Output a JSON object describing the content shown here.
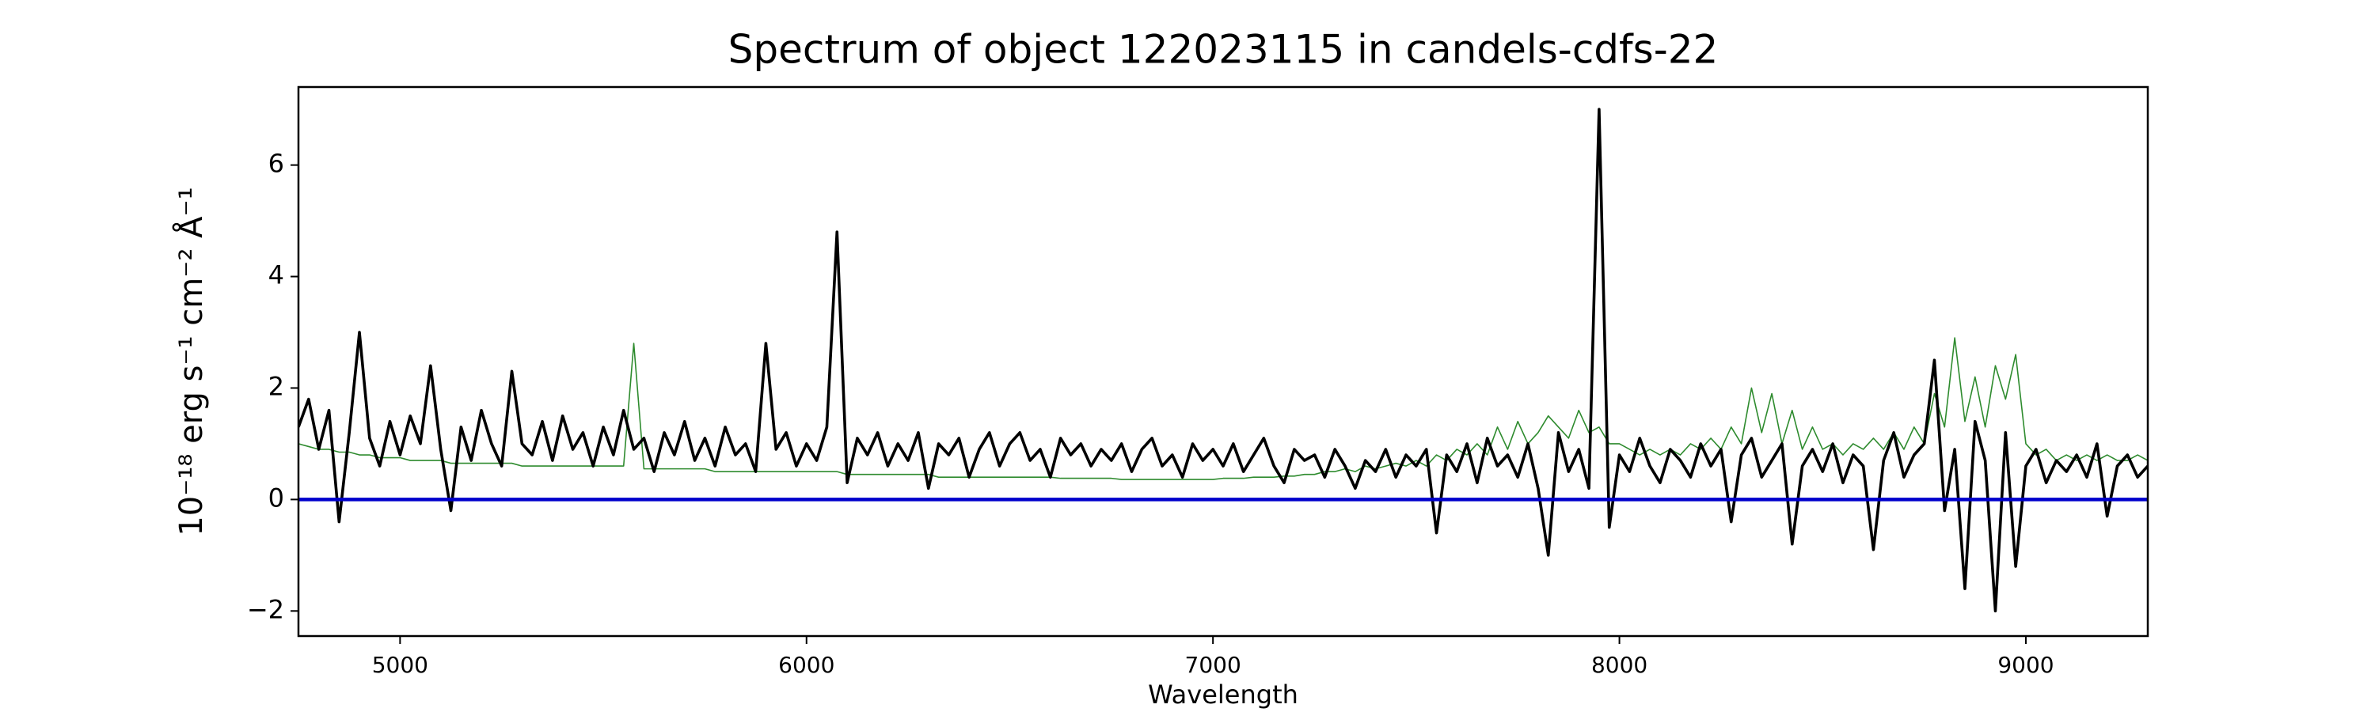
{
  "chart_data": {
    "type": "line",
    "title": "Spectrum of object 122023115 in candels-cdfs-22",
    "xlabel": "Wavelength",
    "ylabel": "10⁻¹⁸ erg s⁻¹ cm⁻² Å⁻¹",
    "x": [
      4750,
      4775,
      4800,
      4825,
      4850,
      4875,
      4900,
      4925,
      4950,
      4975,
      5000,
      5025,
      5050,
      5075,
      5100,
      5125,
      5150,
      5175,
      5200,
      5225,
      5250,
      5275,
      5300,
      5325,
      5350,
      5375,
      5400,
      5425,
      5450,
      5475,
      5500,
      5525,
      5550,
      5575,
      5600,
      5625,
      5650,
      5675,
      5700,
      5725,
      5750,
      5775,
      5800,
      5825,
      5850,
      5875,
      5900,
      5925,
      5950,
      5975,
      6000,
      6025,
      6050,
      6075,
      6100,
      6125,
      6150,
      6175,
      6200,
      6225,
      6250,
      6275,
      6300,
      6325,
      6350,
      6375,
      6400,
      6425,
      6450,
      6475,
      6500,
      6525,
      6550,
      6575,
      6600,
      6625,
      6650,
      6675,
      6700,
      6725,
      6750,
      6775,
      6800,
      6825,
      6850,
      6875,
      6900,
      6925,
      6950,
      6975,
      7000,
      7025,
      7050,
      7075,
      7100,
      7125,
      7150,
      7175,
      7200,
      7225,
      7250,
      7275,
      7300,
      7325,
      7350,
      7375,
      7400,
      7425,
      7450,
      7475,
      7500,
      7525,
      7550,
      7575,
      7600,
      7625,
      7650,
      7675,
      7700,
      7725,
      7750,
      7775,
      7800,
      7825,
      7850,
      7875,
      7900,
      7925,
      7950,
      7975,
      8000,
      8025,
      8050,
      8075,
      8100,
      8125,
      8150,
      8175,
      8200,
      8225,
      8250,
      8275,
      8300,
      8325,
      8350,
      8375,
      8400,
      8425,
      8450,
      8475,
      8500,
      8525,
      8550,
      8575,
      8600,
      8625,
      8650,
      8675,
      8700,
      8725,
      8750,
      8775,
      8800,
      8825,
      8850,
      8875,
      8900,
      8925,
      8950,
      8975,
      9000,
      9025,
      9050,
      9075,
      9100,
      9125,
      9150,
      9175,
      9200,
      9225,
      9250,
      9275,
      9300
    ],
    "series": [
      {
        "color": "#2e8b2e",
        "values": [
          1.0,
          0.95,
          0.9,
          0.9,
          0.85,
          0.85,
          0.8,
          0.8,
          0.75,
          0.75,
          0.75,
          0.7,
          0.7,
          0.7,
          0.7,
          0.65,
          0.65,
          0.65,
          0.65,
          0.65,
          0.65,
          0.65,
          0.6,
          0.6,
          0.6,
          0.6,
          0.6,
          0.6,
          0.6,
          0.6,
          0.6,
          0.6,
          0.6,
          2.8,
          0.55,
          0.55,
          0.55,
          0.55,
          0.55,
          0.55,
          0.55,
          0.5,
          0.5,
          0.5,
          0.5,
          0.5,
          0.5,
          0.5,
          0.5,
          0.5,
          0.5,
          0.5,
          0.5,
          0.5,
          0.45,
          0.45,
          0.45,
          0.45,
          0.45,
          0.45,
          0.45,
          0.45,
          0.45,
          0.4,
          0.4,
          0.4,
          0.4,
          0.4,
          0.4,
          0.4,
          0.4,
          0.4,
          0.4,
          0.4,
          0.4,
          0.38,
          0.38,
          0.38,
          0.38,
          0.38,
          0.38,
          0.36,
          0.36,
          0.36,
          0.36,
          0.36,
          0.36,
          0.36,
          0.36,
          0.36,
          0.36,
          0.38,
          0.38,
          0.38,
          0.4,
          0.4,
          0.4,
          0.42,
          0.42,
          0.45,
          0.45,
          0.5,
          0.5,
          0.55,
          0.5,
          0.6,
          0.55,
          0.6,
          0.65,
          0.6,
          0.7,
          0.6,
          0.8,
          0.7,
          0.9,
          0.8,
          1.0,
          0.8,
          1.3,
          0.9,
          1.4,
          1.0,
          1.2,
          1.5,
          1.3,
          1.1,
          1.6,
          1.2,
          1.3,
          1.0,
          1.0,
          0.9,
          0.8,
          0.9,
          0.8,
          0.9,
          0.8,
          1.0,
          0.9,
          1.1,
          0.9,
          1.3,
          1.0,
          2.0,
          1.2,
          1.9,
          1.0,
          1.6,
          0.9,
          1.3,
          0.9,
          1.0,
          0.8,
          1.0,
          0.9,
          1.1,
          0.9,
          1.2,
          0.9,
          1.3,
          1.0,
          1.9,
          1.3,
          2.9,
          1.4,
          2.2,
          1.3,
          2.4,
          1.8,
          2.6,
          1.0,
          0.8,
          0.9,
          0.7,
          0.8,
          0.7,
          0.8,
          0.7,
          0.8,
          0.7,
          0.7,
          0.8,
          0.7
        ]
      },
      {
        "color": "#000000",
        "values": [
          1.3,
          1.8,
          0.9,
          1.6,
          -0.4,
          1.2,
          3.0,
          1.1,
          0.6,
          1.4,
          0.8,
          1.5,
          1.0,
          2.4,
          0.9,
          -0.2,
          1.3,
          0.7,
          1.6,
          1.0,
          0.6,
          2.3,
          1.0,
          0.8,
          1.4,
          0.7,
          1.5,
          0.9,
          1.2,
          0.6,
          1.3,
          0.8,
          1.6,
          0.9,
          1.1,
          0.5,
          1.2,
          0.8,
          1.4,
          0.7,
          1.1,
          0.6,
          1.3,
          0.8,
          1.0,
          0.5,
          2.8,
          0.9,
          1.2,
          0.6,
          1.0,
          0.7,
          1.3,
          4.8,
          0.3,
          1.1,
          0.8,
          1.2,
          0.6,
          1.0,
          0.7,
          1.2,
          0.2,
          1.0,
          0.8,
          1.1,
          0.4,
          0.9,
          1.2,
          0.6,
          1.0,
          1.2,
          0.7,
          0.9,
          0.4,
          1.1,
          0.8,
          1.0,
          0.6,
          0.9,
          0.7,
          1.0,
          0.5,
          0.9,
          1.1,
          0.6,
          0.8,
          0.4,
          1.0,
          0.7,
          0.9,
          0.6,
          1.0,
          0.5,
          0.8,
          1.1,
          0.6,
          0.3,
          0.9,
          0.7,
          0.8,
          0.4,
          0.9,
          0.6,
          0.2,
          0.7,
          0.5,
          0.9,
          0.4,
          0.8,
          0.6,
          0.9,
          -0.6,
          0.8,
          0.5,
          1.0,
          0.3,
          1.1,
          0.6,
          0.8,
          0.4,
          1.0,
          0.2,
          -1.0,
          1.2,
          0.5,
          0.9,
          0.2,
          7.0,
          -0.5,
          0.8,
          0.5,
          1.1,
          0.6,
          0.3,
          0.9,
          0.7,
          0.4,
          1.0,
          0.6,
          0.9,
          -0.4,
          0.8,
          1.1,
          0.4,
          0.7,
          1.0,
          -0.8,
          0.6,
          0.9,
          0.5,
          1.0,
          0.3,
          0.8,
          0.6,
          -0.9,
          0.7,
          1.2,
          0.4,
          0.8,
          1.0,
          2.5,
          -0.2,
          0.9,
          -1.6,
          1.4,
          0.7,
          -2.0,
          1.2,
          -1.2,
          0.6,
          0.9,
          0.3,
          0.7,
          0.5,
          0.8,
          0.4,
          1.0,
          -0.3,
          0.6,
          0.8,
          0.4,
          0.6
        ]
      }
    ],
    "reference_line": {
      "value": 0,
      "color": "#0000cc"
    },
    "xlim": [
      4750,
      9300
    ],
    "ylim": [
      -2.45,
      7.4
    ],
    "xticks": [
      5000,
      6000,
      7000,
      8000,
      9000
    ],
    "yticks": [
      {
        "value": -2,
        "label": "−2"
      },
      0,
      2,
      4,
      6
    ]
  }
}
